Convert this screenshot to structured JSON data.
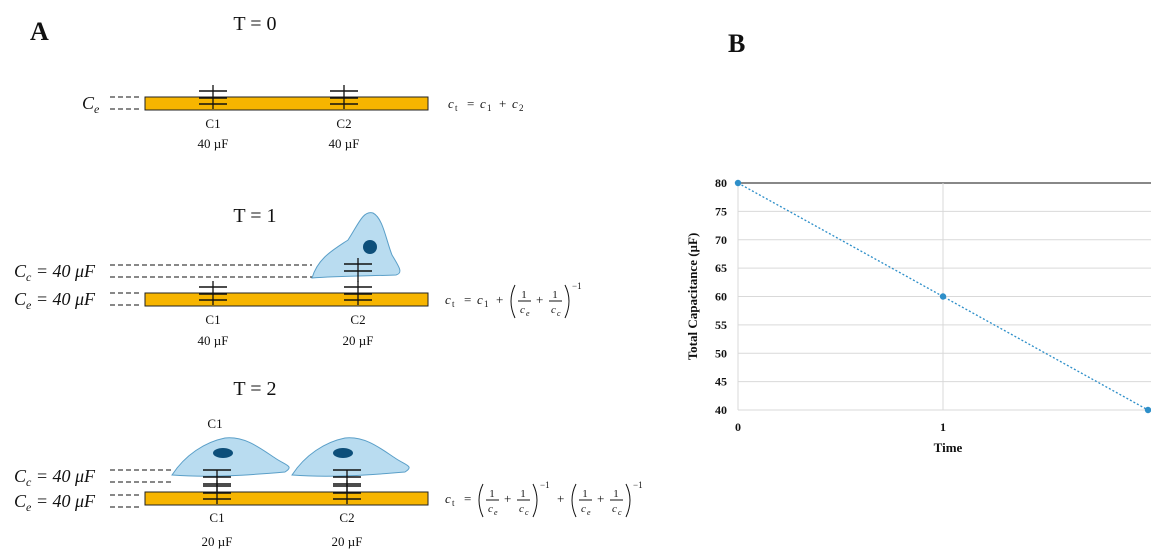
{
  "panel_a": {
    "label": "A",
    "rows": [
      {
        "title": "T = 0",
        "electrode_labels": [
          {
            "text": "C",
            "sub": "e"
          }
        ],
        "capacitors": [
          {
            "name": "C1",
            "value": "40 µF"
          },
          {
            "name": "C2",
            "value": "40 µF"
          }
        ],
        "formula": [
          {
            "text": "c",
            "sub": "t"
          },
          {
            "text": "="
          },
          {
            "text": "c",
            "sub": "1"
          },
          {
            "text": "+"
          },
          {
            "text": "c",
            "sub": "2"
          }
        ]
      },
      {
        "title": "T = 1",
        "electrode_labels": [
          {
            "text": "C",
            "sub": "c",
            "rest": " = 40 μF"
          },
          {
            "text": "C",
            "sub": "e",
            "rest": " = 40 μF"
          }
        ],
        "capacitors": [
          {
            "name": "C1",
            "value": "40 µF"
          },
          {
            "name": "C2",
            "value": "20 µF"
          }
        ],
        "formula": [
          {
            "text": "c",
            "sub": "t"
          },
          {
            "text": "="
          },
          {
            "text": "c",
            "sub": "1"
          },
          {
            "text": "+"
          },
          {
            "group": [
              {
                "num": "1",
                "den": "c",
                "den_sub": "e"
              },
              {
                "text": "+"
              },
              {
                "num": "1",
                "den": "c",
                "den_sub": "c"
              }
            ],
            "exp": "−1"
          }
        ]
      },
      {
        "title": "T = 2",
        "cell_label": "C1",
        "electrode_labels": [
          {
            "text": "C",
            "sub": "c",
            "rest": " = 40 μF"
          },
          {
            "text": "C",
            "sub": "e",
            "rest": " = 40 μF"
          }
        ],
        "capacitors": [
          {
            "name": "C1",
            "value": "20 µF"
          },
          {
            "name": "C2",
            "value": "20 µF"
          }
        ],
        "formula": [
          {
            "text": "c",
            "sub": "t"
          },
          {
            "text": "="
          },
          {
            "group": [
              {
                "num": "1",
                "den": "c",
                "den_sub": "e"
              },
              {
                "text": "+"
              },
              {
                "num": "1",
                "den": "c",
                "den_sub": "c"
              }
            ],
            "exp": "−1"
          },
          {
            "text": "+"
          },
          {
            "group": [
              {
                "num": "1",
                "den": "c",
                "den_sub": "e"
              },
              {
                "text": "+"
              },
              {
                "num": "1",
                "den": "c",
                "den_sub": "c"
              }
            ],
            "exp": "−1"
          }
        ]
      }
    ]
  },
  "chart_data": {
    "type": "line",
    "panel_label": "B",
    "x_label": "Time",
    "y_label": "Total Capacitance (µF)",
    "x": [
      0,
      1,
      2
    ],
    "series": [
      {
        "color": "#2e8fc9",
        "values": [
          80,
          60,
          40
        ]
      }
    ],
    "xlim": [
      0,
      2
    ],
    "xticks": [
      0,
      1
    ],
    "ylim": [
      40,
      80
    ],
    "yticks": [
      40,
      45,
      50,
      55,
      60,
      65,
      70,
      75,
      80
    ],
    "grid": true
  }
}
